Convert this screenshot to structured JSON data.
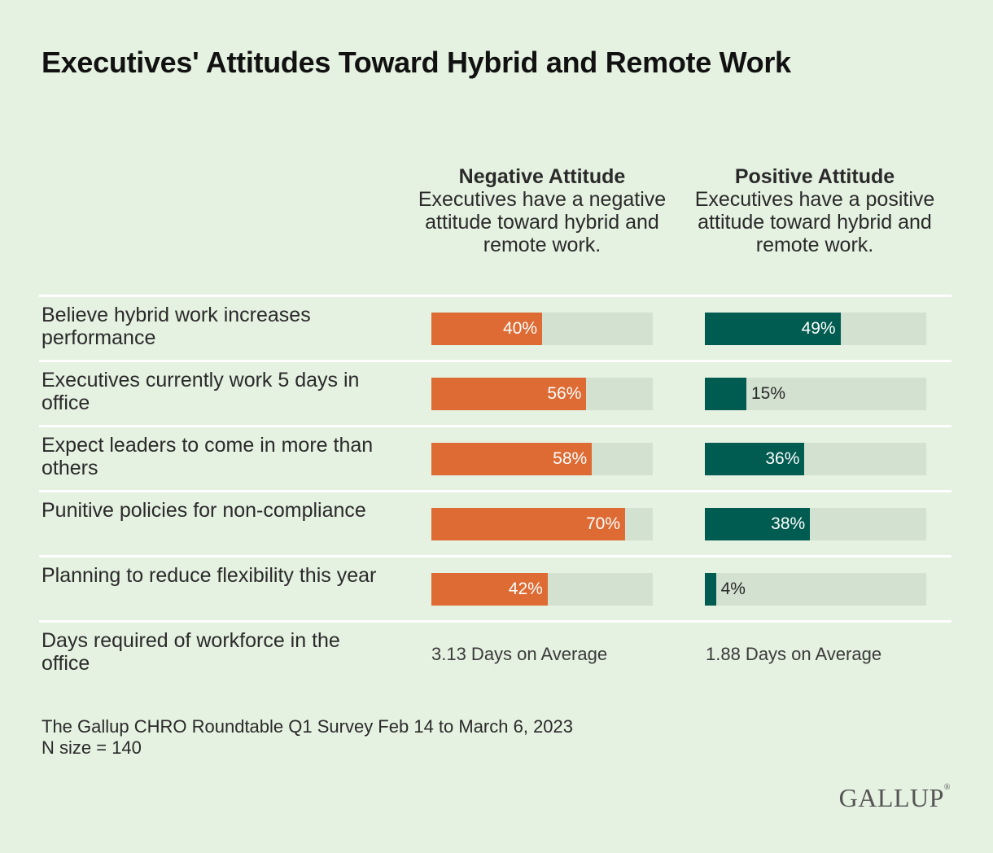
{
  "title": "Executives' Attitudes Toward Hybrid and Remote Work",
  "columns": {
    "negative": {
      "heading": "Negative Attitude",
      "description": "Executives have a negative attitude toward hybrid and remote work."
    },
    "positive": {
      "heading": "Positive Attitude",
      "description": "Executives have a positive attitude toward hybrid and remote work."
    }
  },
  "colors": {
    "negative": "#dd6b33",
    "positive": "#005b50",
    "track": "#d3e1d0",
    "background": "#e5f1e1"
  },
  "chart_data": {
    "type": "bar",
    "orientation": "horizontal",
    "categories": [
      "Believe hybrid work increases performance",
      "Executives currently work 5 days in office",
      "Expect leaders to come in more than others",
      "Punitive policies for non-compliance",
      "Planning to reduce flexibility this year"
    ],
    "series": [
      {
        "name": "Negative Attitude",
        "values": [
          40,
          56,
          58,
          70,
          42
        ],
        "labels": [
          "40%",
          "56%",
          "58%",
          "70%",
          "42%"
        ]
      },
      {
        "name": "Positive Attitude",
        "values": [
          49,
          15,
          36,
          38,
          4
        ],
        "labels": [
          "49%",
          "15%",
          "36%",
          "38%",
          "4%"
        ]
      }
    ],
    "xlim": [
      0,
      80
    ],
    "summary_row": {
      "label": "Days required of workforce in the office",
      "negative": "3.13 Days on Average",
      "positive": "1.88 Days on Average"
    }
  },
  "source": {
    "line1": "The Gallup CHRO Roundtable Q1 Survey Feb 14 to March 6, 2023",
    "line2": "N size = 140"
  },
  "logo": "GALLUP"
}
